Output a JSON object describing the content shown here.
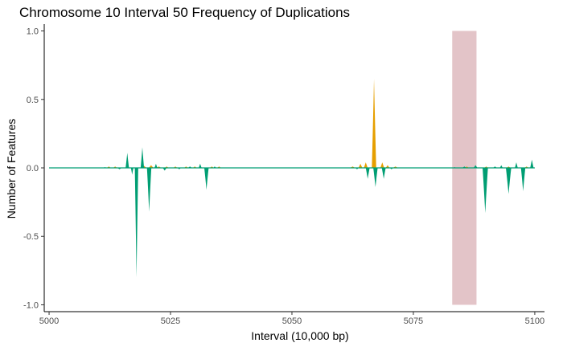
{
  "chart_data": {
    "type": "area",
    "title": "Chromosome 10 Interval 50 Frequency of Duplications",
    "xlabel": "Interval (10,000 bp)",
    "ylabel": "Number of Features",
    "xlim": [
      4999,
      5102
    ],
    "ylim": [
      -1.05,
      1.05
    ],
    "x_ticks": [
      5000,
      5025,
      5050,
      5075,
      5100
    ],
    "y_ticks": [
      -1.0,
      -0.5,
      0.0,
      0.5,
      1.0
    ],
    "y_tick_labels": [
      "-1.0",
      "-0.5",
      "0.0",
      "0.5",
      "1.0"
    ],
    "grid": false,
    "legend": "none",
    "highlight_region": {
      "x": [
        5083,
        5088
      ],
      "y": [
        -1.0,
        1.0
      ],
      "color": "#e3c4c8"
    },
    "baseline": {
      "x": [
        5000,
        5100
      ],
      "y": 0.0,
      "color": "#009e73"
    },
    "series": [
      {
        "color": "#e69f00",
        "peaks": [
          {
            "center": 5012.3,
            "width": 0.4,
            "height": 0.01
          },
          {
            "center": 5013.6,
            "width": 0.4,
            "height": 0.01
          },
          {
            "center": 5019.6,
            "width": 0.4,
            "height": 0.015
          },
          {
            "center": 5021.0,
            "width": 0.5,
            "height": 0.02
          },
          {
            "center": 5022.6,
            "width": 0.5,
            "height": 0.01
          },
          {
            "center": 5024.2,
            "width": 0.4,
            "height": 0.01
          },
          {
            "center": 5026.0,
            "width": 0.4,
            "height": 0.01
          },
          {
            "center": 5028.2,
            "width": 0.4,
            "height": 0.01
          },
          {
            "center": 5030.0,
            "width": 0.4,
            "height": 0.01
          },
          {
            "center": 5033.5,
            "width": 0.4,
            "height": 0.01
          },
          {
            "center": 5035.0,
            "width": 0.4,
            "height": 0.01
          },
          {
            "center": 5062.5,
            "width": 0.5,
            "height": 0.01
          },
          {
            "center": 5064.1,
            "width": 0.4,
            "height": 0.03
          },
          {
            "center": 5065.2,
            "width": 0.4,
            "height": 0.04
          },
          {
            "center": 5066.9,
            "width": 0.45,
            "height": 0.65
          },
          {
            "center": 5068.6,
            "width": 0.4,
            "height": 0.04
          },
          {
            "center": 5069.7,
            "width": 0.4,
            "height": 0.02
          },
          {
            "center": 5071.3,
            "width": 0.5,
            "height": 0.01
          },
          {
            "center": 5086.0,
            "width": 0.4,
            "height": 0.01
          },
          {
            "center": 5090.0,
            "width": 0.4,
            "height": 0.01
          },
          {
            "center": 5094.6,
            "width": 0.4,
            "height": 0.01
          },
          {
            "center": 5098.3,
            "width": 0.4,
            "height": 0.01
          }
        ]
      },
      {
        "color": "#009e73",
        "peaks": [
          {
            "center": 5011.5,
            "width": 0.5,
            "height": 0.005
          },
          {
            "center": 5014.5,
            "width": 0.5,
            "height": -0.01
          },
          {
            "center": 5016.1,
            "width": 0.35,
            "height": 0.11
          },
          {
            "center": 5017.1,
            "width": 0.25,
            "height": -0.05
          },
          {
            "center": 5018.0,
            "width": 0.35,
            "height": -0.8
          },
          {
            "center": 5019.2,
            "width": 0.35,
            "height": 0.15
          },
          {
            "center": 5020.6,
            "width": 0.45,
            "height": -0.32
          },
          {
            "center": 5022.0,
            "width": 0.3,
            "height": 0.03
          },
          {
            "center": 5023.8,
            "width": 0.4,
            "height": -0.02
          },
          {
            "center": 5026.8,
            "width": 0.4,
            "height": -0.01
          },
          {
            "center": 5029.0,
            "width": 0.4,
            "height": 0.01
          },
          {
            "center": 5031.1,
            "width": 0.3,
            "height": 0.03
          },
          {
            "center": 5032.4,
            "width": 0.45,
            "height": -0.16
          },
          {
            "center": 5034.1,
            "width": 0.3,
            "height": 0.01
          },
          {
            "center": 5063.4,
            "width": 0.4,
            "height": -0.01
          },
          {
            "center": 5065.6,
            "width": 0.4,
            "height": -0.08
          },
          {
            "center": 5067.2,
            "width": 0.45,
            "height": -0.14
          },
          {
            "center": 5068.9,
            "width": 0.4,
            "height": -0.08
          },
          {
            "center": 5070.5,
            "width": 0.4,
            "height": -0.01
          },
          {
            "center": 5083.5,
            "width": 0.4,
            "height": 0.005
          },
          {
            "center": 5085.5,
            "width": 0.4,
            "height": 0.01
          },
          {
            "center": 5087.8,
            "width": 0.4,
            "height": 0.02
          },
          {
            "center": 5089.8,
            "width": 0.55,
            "height": -0.33
          },
          {
            "center": 5091.8,
            "width": 0.4,
            "height": 0.01
          },
          {
            "center": 5093.1,
            "width": 0.3,
            "height": 0.02
          },
          {
            "center": 5094.6,
            "width": 0.55,
            "height": -0.19
          },
          {
            "center": 5096.2,
            "width": 0.3,
            "height": 0.04
          },
          {
            "center": 5097.6,
            "width": 0.45,
            "height": -0.17
          },
          {
            "center": 5099.4,
            "width": 0.35,
            "height": 0.06
          }
        ]
      }
    ]
  }
}
